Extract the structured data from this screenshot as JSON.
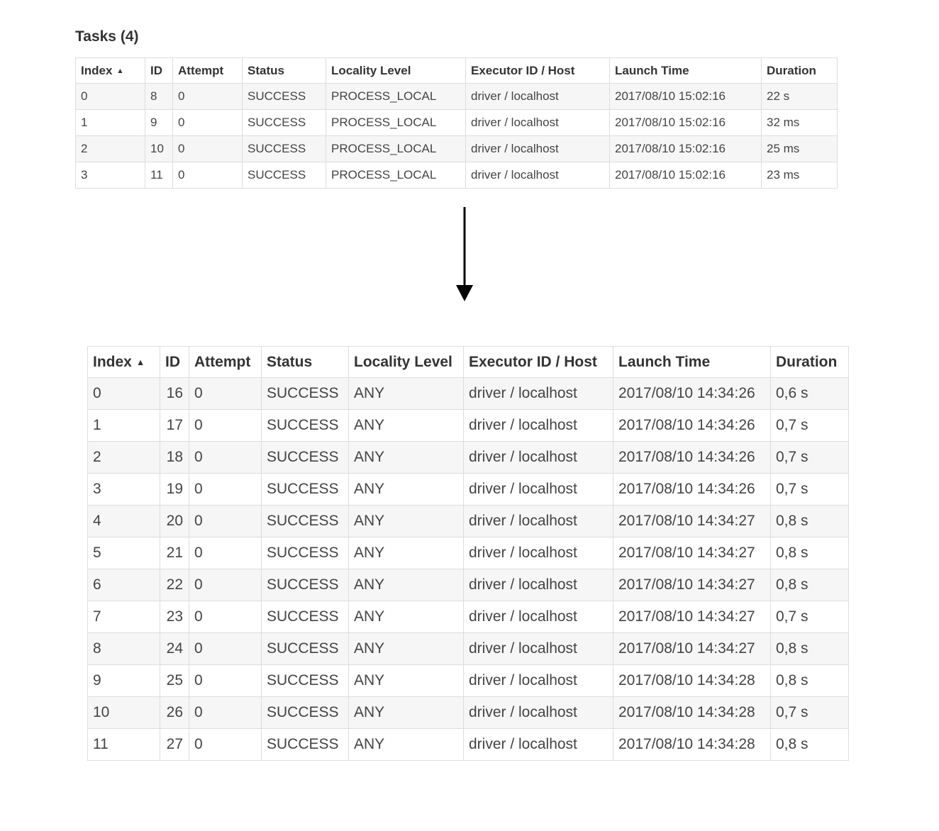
{
  "top": {
    "title": "Tasks (4)",
    "columns": [
      "Index",
      "ID",
      "Attempt",
      "Status",
      "Locality Level",
      "Executor ID / Host",
      "Launch Time",
      "Duration"
    ],
    "sort_indicator": "▲",
    "rows": [
      [
        "0",
        "8",
        "0",
        "SUCCESS",
        "PROCESS_LOCAL",
        "driver / localhost",
        "2017/08/10 15:02:16",
        "22 s"
      ],
      [
        "1",
        "9",
        "0",
        "SUCCESS",
        "PROCESS_LOCAL",
        "driver / localhost",
        "2017/08/10 15:02:16",
        "32 ms"
      ],
      [
        "2",
        "10",
        "0",
        "SUCCESS",
        "PROCESS_LOCAL",
        "driver / localhost",
        "2017/08/10 15:02:16",
        "25 ms"
      ],
      [
        "3",
        "11",
        "0",
        "SUCCESS",
        "PROCESS_LOCAL",
        "driver / localhost",
        "2017/08/10 15:02:16",
        "23 ms"
      ]
    ]
  },
  "bottom": {
    "columns": [
      "Index",
      "ID",
      "Attempt",
      "Status",
      "Locality Level",
      "Executor ID / Host",
      "Launch Time",
      "Duration"
    ],
    "sort_indicator": "▲",
    "rows": [
      [
        "0",
        "16",
        "0",
        "SUCCESS",
        "ANY",
        "driver / localhost",
        "2017/08/10 14:34:26",
        "0,6 s"
      ],
      [
        "1",
        "17",
        "0",
        "SUCCESS",
        "ANY",
        "driver / localhost",
        "2017/08/10 14:34:26",
        "0,7 s"
      ],
      [
        "2",
        "18",
        "0",
        "SUCCESS",
        "ANY",
        "driver / localhost",
        "2017/08/10 14:34:26",
        "0,7 s"
      ],
      [
        "3",
        "19",
        "0",
        "SUCCESS",
        "ANY",
        "driver / localhost",
        "2017/08/10 14:34:26",
        "0,7 s"
      ],
      [
        "4",
        "20",
        "0",
        "SUCCESS",
        "ANY",
        "driver / localhost",
        "2017/08/10 14:34:27",
        "0,8 s"
      ],
      [
        "5",
        "21",
        "0",
        "SUCCESS",
        "ANY",
        "driver / localhost",
        "2017/08/10 14:34:27",
        "0,8 s"
      ],
      [
        "6",
        "22",
        "0",
        "SUCCESS",
        "ANY",
        "driver / localhost",
        "2017/08/10 14:34:27",
        "0,8 s"
      ],
      [
        "7",
        "23",
        "0",
        "SUCCESS",
        "ANY",
        "driver / localhost",
        "2017/08/10 14:34:27",
        "0,7 s"
      ],
      [
        "8",
        "24",
        "0",
        "SUCCESS",
        "ANY",
        "driver / localhost",
        "2017/08/10 14:34:27",
        "0,8 s"
      ],
      [
        "9",
        "25",
        "0",
        "SUCCESS",
        "ANY",
        "driver / localhost",
        "2017/08/10 14:34:28",
        "0,8 s"
      ],
      [
        "10",
        "26",
        "0",
        "SUCCESS",
        "ANY",
        "driver / localhost",
        "2017/08/10 14:34:28",
        "0,7 s"
      ],
      [
        "11",
        "27",
        "0",
        "SUCCESS",
        "ANY",
        "driver / localhost",
        "2017/08/10 14:34:28",
        "0,8 s"
      ]
    ]
  },
  "arrow_icon": "arrow-down-icon"
}
